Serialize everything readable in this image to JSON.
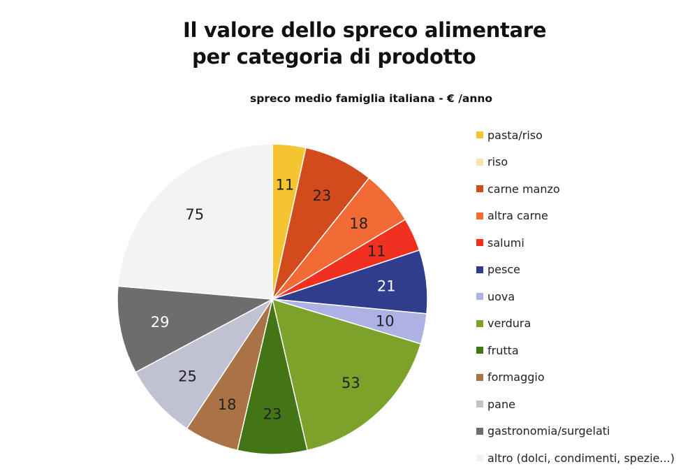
{
  "title": {
    "line1": "Il valore dello spreco alimentare",
    "line2": "per categoria di prodotto"
  },
  "subtitle": "spreco medio famiglia italiana - € /anno",
  "chart_data": {
    "type": "pie",
    "title": "Il valore dello spreco alimentare per categoria di prodotto",
    "subtitle": "spreco medio famiglia italiana - € /anno",
    "legend_position": "right",
    "categories": [
      "pasta/riso",
      "riso",
      "carne manzo",
      "altra carne",
      "salumi",
      "pesce",
      "uova",
      "verdura",
      "frutta",
      "formaggio",
      "pane",
      "gastronomia/surgelati",
      "altro (dolci, condimenti, spezie...)"
    ],
    "values": [
      11,
      0,
      23,
      18,
      11,
      21,
      10,
      53,
      23,
      18,
      25,
      29,
      75
    ],
    "colors": [
      "#F5C431",
      "#F9E3A6",
      "#D34B1D",
      "#F26B34",
      "#F0311F",
      "#303D8C",
      "#AEB1E3",
      "#7CA22A",
      "#437415",
      "#A97346",
      "#C0C1D2",
      "#6D6D6D",
      "#F3F3F3"
    ],
    "label_colors": [
      "#222222",
      "#222222",
      "#222222",
      "#222222",
      "#222222",
      "#ffffff",
      "#222222",
      "#222222",
      "#222222",
      "#222222",
      "#222222",
      "#ffffff",
      "#222222"
    ]
  }
}
